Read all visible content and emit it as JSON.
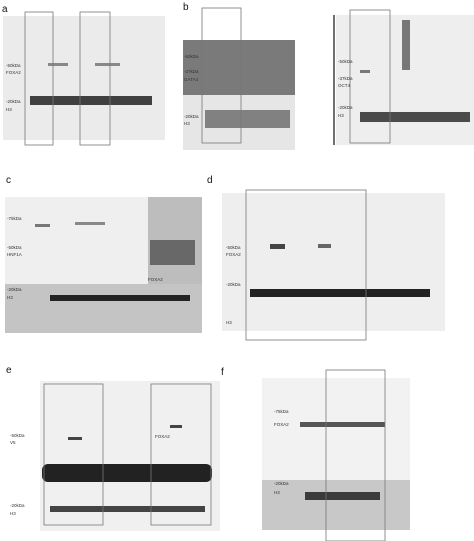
{
  "panels": [
    {
      "letter": "a",
      "labels": [
        "-50kDa",
        "FOXA2",
        "-20kDa",
        "H3"
      ]
    },
    {
      "letter": "b",
      "labels": [
        "-50kDa",
        "-37kDa",
        "GATA4",
        "-20kDa",
        "H3",
        "-50kDa",
        "-37kDa",
        "OCT4",
        "-20kDa",
        "H3"
      ]
    },
    {
      "letter": "c",
      "labels": [
        "-75kDa",
        "-50kDa",
        "HNF1A",
        "FOXA2",
        "-20kDa",
        "H3"
      ]
    },
    {
      "letter": "d",
      "labels": [
        "-50kDa",
        "FOXA2",
        "-20kDa",
        "H3"
      ]
    },
    {
      "letter": "e",
      "labels": [
        "-50kDa",
        "V5",
        "FOXA2",
        "-20kDa",
        "H3"
      ]
    },
    {
      "letter": "f",
      "labels": [
        "-75kDa",
        "FOXA2",
        "-20kDa",
        "H3"
      ]
    }
  ]
}
